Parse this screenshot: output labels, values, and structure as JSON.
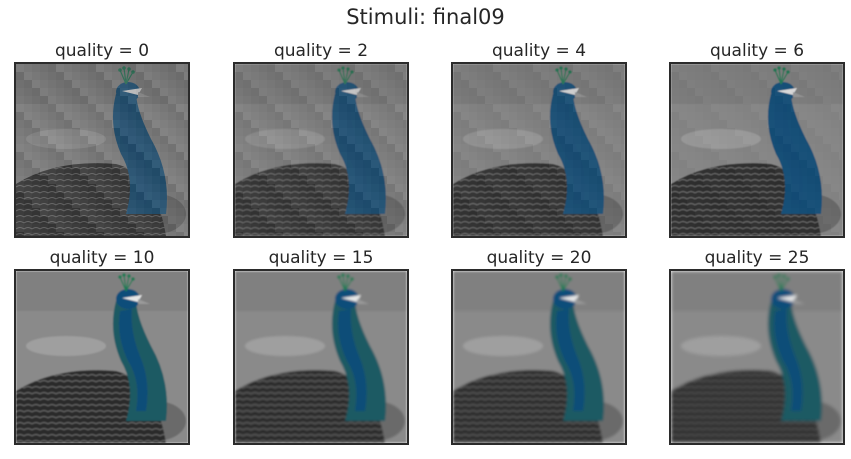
{
  "figure": {
    "title": "Stimuli: final09",
    "panels": [
      {
        "title": "quality = 0",
        "quality": 0
      },
      {
        "title": "quality = 2",
        "quality": 2
      },
      {
        "title": "quality = 4",
        "quality": 4
      },
      {
        "title": "quality = 6",
        "quality": 6
      },
      {
        "title": "quality = 10",
        "quality": 10
      },
      {
        "title": "quality = 15",
        "quality": 15
      },
      {
        "title": "quality = 20",
        "quality": 20
      },
      {
        "title": "quality = 25",
        "quality": 25
      }
    ]
  },
  "colors": {
    "background_gray": "#8a8a8a",
    "shadow_gray": "#5c5c5c",
    "body_dark": "#2a2a2a",
    "neck_blue": "#114d7a",
    "neck_teal": "#1b5a63",
    "crest_green": "#1e7a55"
  }
}
